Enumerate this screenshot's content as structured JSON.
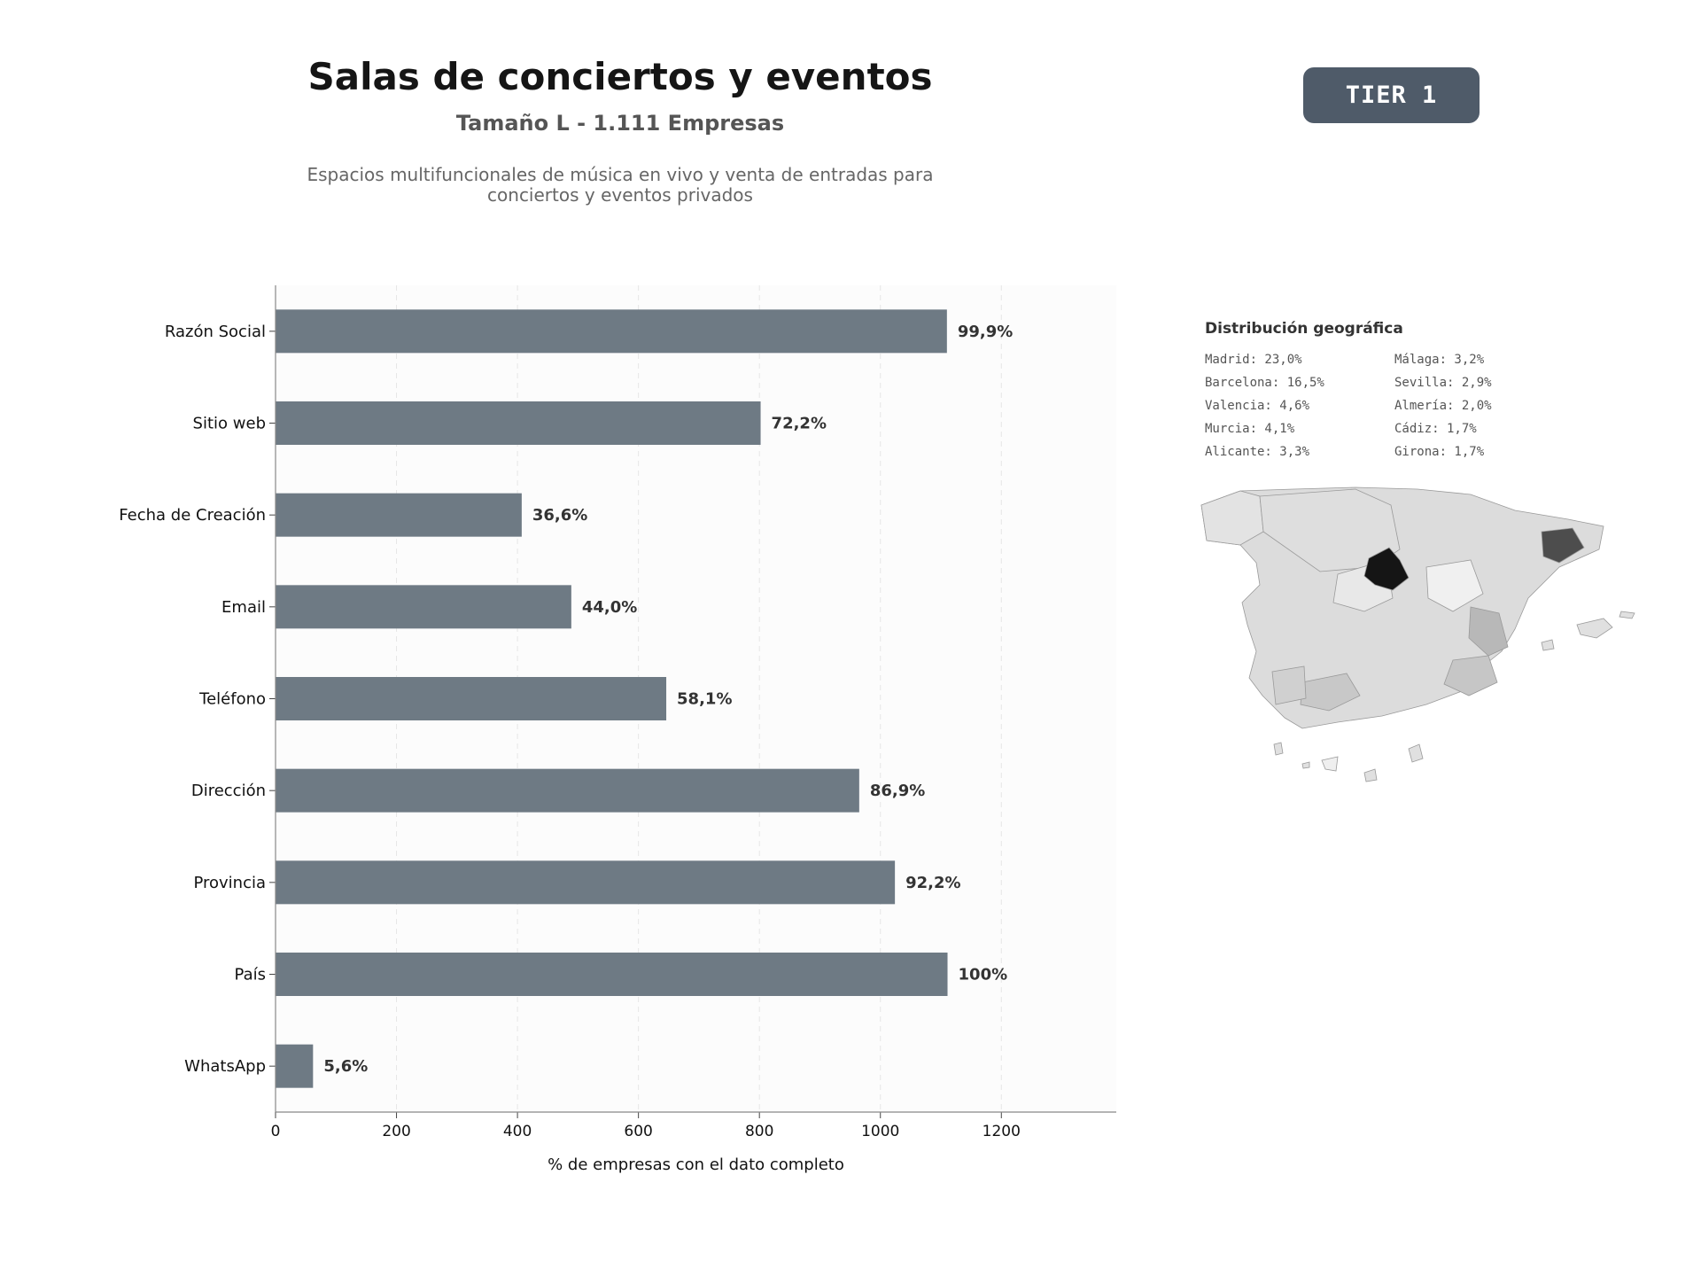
{
  "header": {
    "title": "Salas de conciertos y eventos",
    "subtitle": "Tamaño L - 1.111 Empresas",
    "description": "Espacios multifuncionales de música en vivo y venta de entradas para conciertos y eventos privados",
    "tier_label": "TIER 1"
  },
  "chart_data": {
    "type": "bar",
    "orientation": "horizontal",
    "categories": [
      "Razón Social",
      "Sitio web",
      "Fecha de Creación",
      "Email",
      "Teléfono",
      "Dirección",
      "Provincia",
      "País",
      "WhatsApp"
    ],
    "values": [
      1110,
      802,
      407,
      489,
      646,
      965,
      1024,
      1111,
      62
    ],
    "value_labels": [
      "99,9%",
      "72,2%",
      "36,6%",
      "44,0%",
      "58,1%",
      "86,9%",
      "92,2%",
      "100%",
      "5,6%"
    ],
    "xlabel": "% de empresas con el dato completo",
    "xlim": [
      0,
      1390
    ],
    "xticks": [
      "0",
      "200",
      "400",
      "600",
      "800",
      "1000",
      "1200"
    ],
    "bar_color": "#6e7a84",
    "grid": true
  },
  "geo": {
    "title": "Distribución geográfica",
    "items": [
      "Madrid: 23,0%",
      "Barcelona: 16,5%",
      "Valencia: 4,6%",
      "Murcia: 4,1%",
      "Alicante: 3,3%",
      "Málaga: 3,2%",
      "Sevilla: 2,9%",
      "Almería: 2,0%",
      "Cádiz: 1,7%",
      "Girona: 1,7%"
    ],
    "highlight_colors": {
      "madrid": "#151515",
      "barcelona": "#4d4d4d",
      "valencia": "#b8b8b8",
      "base": "#dcdcdc"
    }
  }
}
